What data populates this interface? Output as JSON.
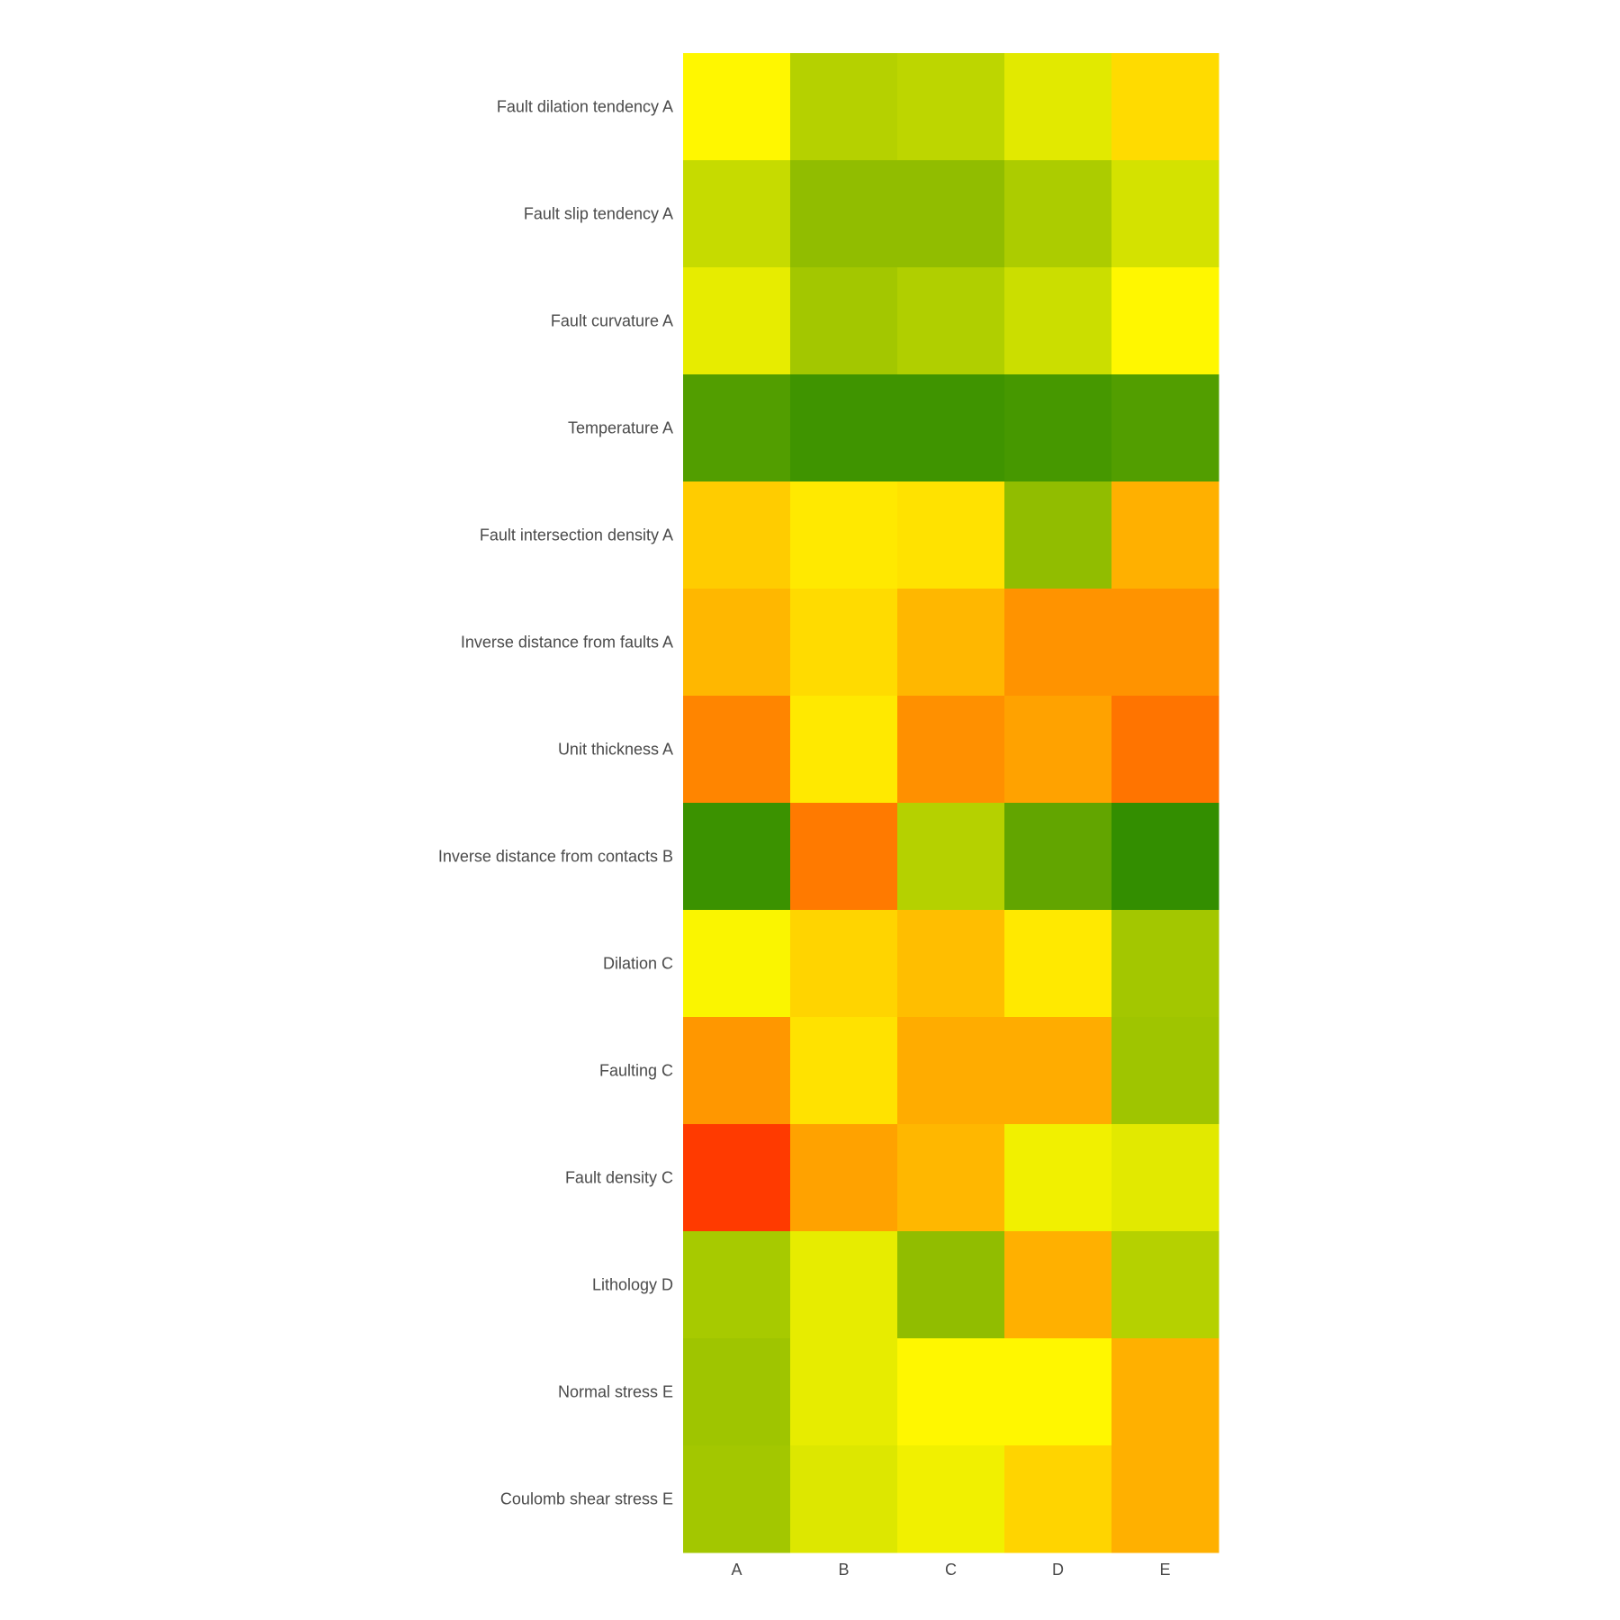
{
  "chart_data": {
    "type": "heatmap",
    "title": "",
    "xlabel": "",
    "ylabel": "",
    "x_categories": [
      "A",
      "B",
      "C",
      "D",
      "E"
    ],
    "y_categories": [
      "Fault dilation tendency A",
      "Fault slip tendency A",
      "Fault curvature A",
      "Temperature A",
      "Fault intersection density A",
      "Inverse distance from faults A",
      "Unit thickness A",
      "Inverse distance from contacts B",
      "Dilation C",
      "Faulting C",
      "Fault density C",
      "Lithology D",
      "Normal stress E",
      "Coulomb shear stress E"
    ],
    "colorscale": [
      [
        0.0,
        "#ff2a00"
      ],
      [
        0.25,
        "#ff7a00"
      ],
      [
        0.4,
        "#ffb000"
      ],
      [
        0.5,
        "#fff700"
      ],
      [
        0.6,
        "#cfe000"
      ],
      [
        0.75,
        "#8dbb00"
      ],
      [
        1.0,
        "#2b8a00"
      ]
    ],
    "values": [
      [
        0.5,
        0.66,
        0.64,
        0.56,
        0.46
      ],
      [
        0.62,
        0.74,
        0.74,
        0.68,
        0.59
      ],
      [
        0.55,
        0.7,
        0.67,
        0.61,
        0.5
      ],
      [
        0.9,
        0.95,
        0.95,
        0.93,
        0.9
      ],
      [
        0.44,
        0.48,
        0.47,
        0.74,
        0.4
      ],
      [
        0.41,
        0.46,
        0.41,
        0.32,
        0.32
      ],
      [
        0.28,
        0.48,
        0.31,
        0.36,
        0.23
      ],
      [
        0.96,
        0.25,
        0.66,
        0.86,
        0.98
      ],
      [
        0.51,
        0.45,
        0.42,
        0.48,
        0.7
      ],
      [
        0.33,
        0.47,
        0.39,
        0.39,
        0.71
      ],
      [
        0.05,
        0.36,
        0.41,
        0.53,
        0.56
      ],
      [
        0.69,
        0.55,
        0.74,
        0.4,
        0.66
      ],
      [
        0.71,
        0.55,
        0.5,
        0.5,
        0.4
      ],
      [
        0.7,
        0.57,
        0.53,
        0.45,
        0.4
      ]
    ],
    "legend": "none"
  }
}
